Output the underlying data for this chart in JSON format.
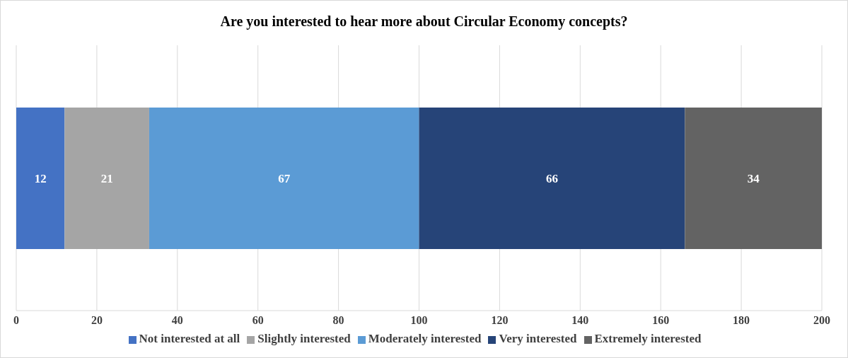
{
  "chart_data": {
    "type": "bar",
    "orientation": "horizontal",
    "stacked": true,
    "title": "Are you interested to hear more about Circular Economy concepts?",
    "categories": [
      null
    ],
    "series": [
      {
        "name": "Not interested at all",
        "color": "#4472c4",
        "values": [
          12
        ]
      },
      {
        "name": "Slightly interested",
        "color": "#a5a5a5",
        "values": [
          21
        ]
      },
      {
        "name": "Moderately interested",
        "color": "#5b9bd5",
        "values": [
          67
        ]
      },
      {
        "name": "Very interested",
        "color": "#264478",
        "values": [
          66
        ]
      },
      {
        "name": "Extremely interested",
        "color": "#636363",
        "values": [
          34
        ]
      }
    ],
    "xlim": [
      0,
      200
    ],
    "xticks": [
      0,
      20,
      40,
      60,
      80,
      100,
      120,
      140,
      160,
      180,
      200
    ],
    "grid": "x",
    "legend": "bottom",
    "data_labels": true
  }
}
